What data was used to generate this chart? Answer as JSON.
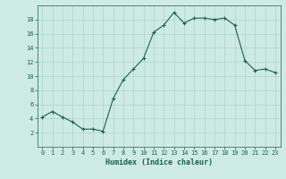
{
  "x": [
    0,
    1,
    2,
    3,
    4,
    5,
    6,
    7,
    8,
    9,
    10,
    11,
    12,
    13,
    14,
    15,
    16,
    17,
    18,
    19,
    20,
    21,
    22,
    23
  ],
  "y": [
    4.2,
    5.0,
    4.2,
    3.5,
    2.5,
    2.5,
    2.2,
    6.8,
    9.5,
    11.0,
    12.5,
    16.2,
    17.2,
    19.0,
    17.5,
    18.2,
    18.2,
    18.0,
    18.2,
    17.2,
    12.2,
    10.8,
    11.0,
    10.5
  ],
  "title": "",
  "xlabel": "Humidex (Indice chaleur)",
  "ylabel": "",
  "bg_color": "#ceeae4",
  "grid_color": "#aed4cc",
  "line_color": "#1a6050",
  "marker": "+",
  "ylim": [
    0,
    20
  ],
  "yticks": [
    2,
    4,
    6,
    8,
    10,
    12,
    14,
    16,
    18
  ],
  "xticks": [
    0,
    1,
    2,
    3,
    4,
    5,
    6,
    7,
    8,
    9,
    10,
    11,
    12,
    13,
    14,
    15,
    16,
    17,
    18,
    19,
    20,
    21,
    22,
    23
  ]
}
